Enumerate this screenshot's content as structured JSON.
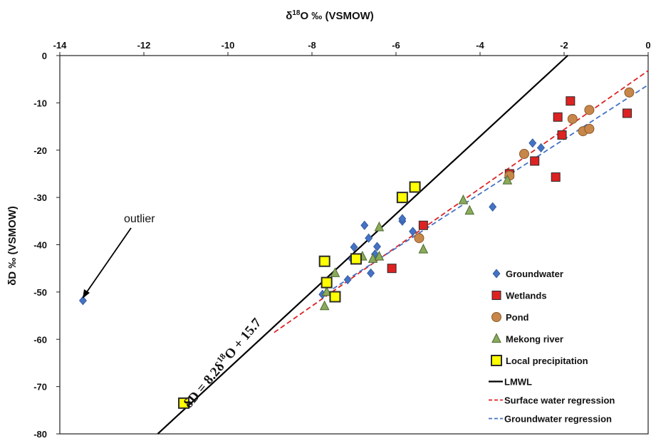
{
  "chart_data": {
    "type": "scatter",
    "xlabel_prefix": "δ",
    "xlabel_sup": "18",
    "xlabel_main": "O ‰ (VSMOW)",
    "ylabel": "δD ‰ (VSMOW)",
    "xlim": [
      -14,
      0
    ],
    "ylim": [
      -80,
      0
    ],
    "xticks": [
      -14,
      -12,
      -10,
      -8,
      -6,
      -4,
      -2,
      0
    ],
    "yticks": [
      0,
      -10,
      -20,
      -30,
      -40,
      -50,
      -60,
      -70,
      -80
    ],
    "x_axis_position": "top",
    "grid": false,
    "legend_position": "bottom-right",
    "annotations": {
      "outlier_label": "outlier",
      "equation_prefix": "δD = 8.2δ",
      "equation_sup": "18",
      "equation_suffix": "O + 15.7"
    },
    "series": [
      {
        "name": "Groundwater",
        "marker": "diamond",
        "color": "#4472c4",
        "points": [
          [
            -13.45,
            -51.8
          ],
          [
            -7.75,
            -50.5
          ],
          [
            -7.15,
            -47.4
          ],
          [
            -7.05,
            -43.0
          ],
          [
            -7.0,
            -40.5
          ],
          [
            -6.75,
            -35.9
          ],
          [
            -6.65,
            -38.6
          ],
          [
            -6.6,
            -46.0
          ],
          [
            -6.5,
            -42.0
          ],
          [
            -6.45,
            -40.4
          ],
          [
            -5.85,
            -35.0
          ],
          [
            -5.85,
            -34.5
          ],
          [
            -5.6,
            -37.2
          ],
          [
            -3.7,
            -32.0
          ],
          [
            -2.75,
            -18.5
          ],
          [
            -2.55,
            -19.5
          ]
        ]
      },
      {
        "name": "Wetlands",
        "marker": "square",
        "color": "#dd2222",
        "points": [
          [
            -6.1,
            -45.0
          ],
          [
            -5.35,
            -35.9
          ],
          [
            -3.3,
            -25.0
          ],
          [
            -2.7,
            -22.3
          ],
          [
            -2.2,
            -25.7
          ],
          [
            -2.15,
            -13.0
          ],
          [
            -2.05,
            -16.8
          ],
          [
            -1.85,
            -9.6
          ],
          [
            -0.5,
            -12.2
          ]
        ]
      },
      {
        "name": "Pond",
        "marker": "circle",
        "color": "#c8874a",
        "points": [
          [
            -5.45,
            -38.6
          ],
          [
            -3.3,
            -25.4
          ],
          [
            -2.95,
            -20.8
          ],
          [
            -1.8,
            -13.4
          ],
          [
            -1.55,
            -16.0
          ],
          [
            -1.4,
            -15.5
          ],
          [
            -1.4,
            -11.5
          ],
          [
            -0.45,
            -7.8
          ]
        ]
      },
      {
        "name": "Mekong river",
        "marker": "triangle",
        "color": "#8aaa5c",
        "points": [
          [
            -7.7,
            -53.0
          ],
          [
            -7.65,
            -50.0
          ],
          [
            -7.45,
            -46.0
          ],
          [
            -6.8,
            -42.5
          ],
          [
            -6.55,
            -43.0
          ],
          [
            -6.4,
            -42.5
          ],
          [
            -6.4,
            -36.3
          ],
          [
            -5.35,
            -41.0
          ],
          [
            -4.4,
            -30.6
          ],
          [
            -4.25,
            -32.8
          ],
          [
            -3.35,
            -26.4
          ]
        ]
      },
      {
        "name": "Local precipitation",
        "marker": "square",
        "color": "#ffff00",
        "points": [
          [
            -11.05,
            -73.5
          ],
          [
            -7.7,
            -43.5
          ],
          [
            -7.65,
            -48.0
          ],
          [
            -7.45,
            -51.0
          ],
          [
            -6.95,
            -43.0
          ],
          [
            -5.85,
            -30.0
          ],
          [
            -5.55,
            -27.8
          ]
        ]
      }
    ],
    "lines": [
      {
        "name": "LMWL",
        "color": "#000000",
        "dash": "solid",
        "slope": 8.2,
        "intercept": 15.7,
        "x_range": [
          -11.67,
          -1.91
        ]
      },
      {
        "name": "Surface water regression",
        "color": "#dd2222",
        "dash": "dash",
        "slope": 6.22,
        "intercept": -3.2,
        "x_range": [
          -8.9,
          0
        ]
      },
      {
        "name": "Groundwater regression",
        "color": "#4472c4",
        "dash": "dash",
        "slope": 5.75,
        "intercept": -6.2,
        "x_range": [
          -7.5,
          0
        ]
      }
    ]
  }
}
